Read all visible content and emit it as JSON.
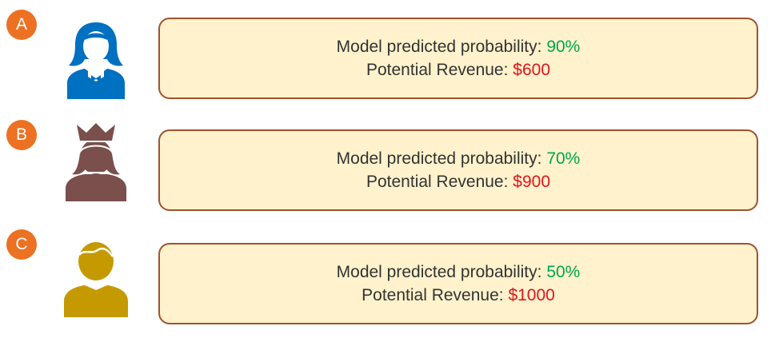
{
  "customers": [
    {
      "label": "A",
      "icon": "woman-customer-icon",
      "icon_color": "#0070c0",
      "probability_label": "Model predicted probability:",
      "probability_value": "90%",
      "revenue_label": "Potential Revenue:",
      "revenue_value": "$600"
    },
    {
      "label": "B",
      "icon": "crowned-woman-customer-icon",
      "icon_color": "#7b4f4c",
      "probability_label": "Model predicted probability:",
      "probability_value": "70%",
      "revenue_label": "Potential Revenue:",
      "revenue_value": "$900"
    },
    {
      "label": "C",
      "icon": "man-customer-icon",
      "icon_color": "#c59a00",
      "probability_label": "Model predicted probability:",
      "probability_value": "50%",
      "revenue_label": "Potential Revenue:",
      "revenue_value": "$1000"
    }
  ],
  "colors": {
    "badge": "#ec7122",
    "card_fill": "#fff2cc",
    "card_border": "#a0522d",
    "probability_value": "#00a651",
    "revenue_value": "#e0141e"
  }
}
